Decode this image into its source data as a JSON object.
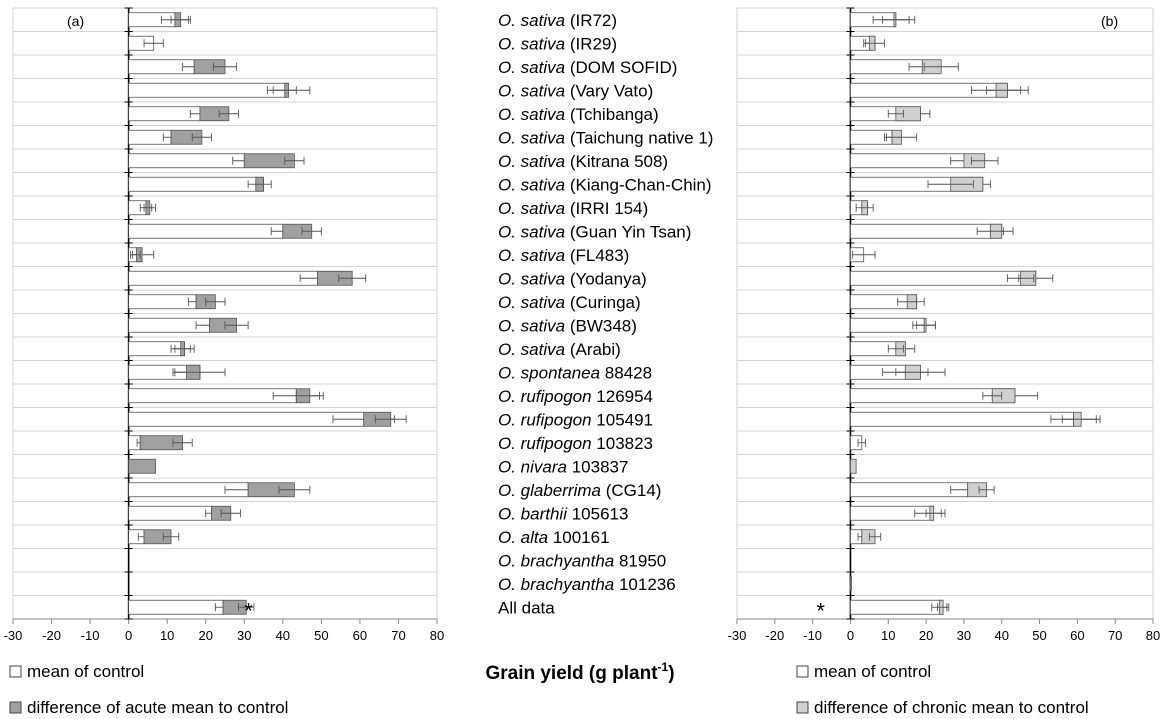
{
  "chart_data": {
    "type": "bar",
    "xlabel": "Grain yield (g plant",
    "xlabel_sup": "-1",
    "xlabel_close": ")",
    "xlim": [
      -30,
      80
    ],
    "xticks": [
      "-30",
      "-20",
      "-10",
      "0",
      "10",
      "20",
      "30",
      "40",
      "50",
      "60",
      "70",
      "80"
    ],
    "categories": [
      {
        "italic": "O. sativa",
        "rest": " (IR72)"
      },
      {
        "italic": "O. sativa",
        "rest": " (IR29)"
      },
      {
        "italic": "O. sativa",
        "rest": " (DOM SOFID)"
      },
      {
        "italic": "O. sativa",
        "rest": " (Vary Vato)"
      },
      {
        "italic": "O. sativa",
        "rest": " (Tchibanga)"
      },
      {
        "italic": "O. sativa",
        "rest": " (Taichung native 1)"
      },
      {
        "italic": "O. sativa",
        "rest": " (Kitrana 508)"
      },
      {
        "italic": "O. sativa",
        "rest": " (Kiang-Chan-Chin)"
      },
      {
        "italic": "O. sativa",
        "rest": " (IRRI 154)"
      },
      {
        "italic": "O. sativa",
        "rest": " (Guan Yin Tsan)"
      },
      {
        "italic": "O. sativa",
        "rest": " (FL483)"
      },
      {
        "italic": "O. sativa",
        "rest": " (Yodanya)"
      },
      {
        "italic": "O. sativa",
        "rest": " (Curinga)"
      },
      {
        "italic": "O. sativa",
        "rest": " (BW348)"
      },
      {
        "italic": "O. sativa",
        "rest": " (Arabi)"
      },
      {
        "italic": "O. spontanea",
        "rest": " 88428"
      },
      {
        "italic": "O. rufipogon",
        "rest": " 126954"
      },
      {
        "italic": "O. rufipogon",
        "rest": " 105491"
      },
      {
        "italic": "O. rufipogon",
        "rest": " 103823"
      },
      {
        "italic": "O. nivara",
        "rest": " 103837"
      },
      {
        "italic": "O. glaberrima",
        "rest": " (CG14)"
      },
      {
        "italic": "O. barthii",
        "rest": " 105613"
      },
      {
        "italic": "O. alta",
        "rest": " 100161"
      },
      {
        "italic": "O. brachyantha",
        "rest": " 81950"
      },
      {
        "italic": "O. brachyantha",
        "rest": " 101236"
      },
      {
        "italic": "",
        "rest": "All data"
      }
    ],
    "panels": [
      {
        "label": "(a)",
        "colors": {
          "control": "#ffffff",
          "difference": "#a0a0a0"
        },
        "legend": [
          "mean of control",
          "difference of acute mean to control"
        ],
        "significance": {
          "index": 25,
          "marker": "*"
        },
        "series": [
          {
            "name": "mean of control",
            "values": [
              12,
              6.5,
              17,
              41.5,
              18.5,
              11,
              30,
              35,
              4.5,
              40,
              3.5,
              49,
              17.5,
              21,
              14.5,
              18.5,
              43.5,
              61,
              3,
              0,
              31,
              21.5,
              4,
              0,
              0,
              24.5
            ],
            "errors": [
              3.5,
              2.5,
              3,
              5.5,
              2.5,
              2,
              3,
              2,
              1.5,
              3,
              3,
              4.5,
              2,
              3.5,
              2.5,
              6.5,
              6,
              8,
              0.8,
              0,
              6,
              1.5,
              1.5,
              0,
              0,
              2
            ]
          },
          {
            "name": "difference of acute mean to control",
            "values": [
              1.5,
              0,
              8,
              -1,
              7.5,
              8,
              13,
              -2,
              1,
              7.5,
              -1.5,
              9,
              5,
              7,
              -1,
              -3.5,
              3.5,
              7,
              11,
              7,
              12,
              5,
              7,
              0,
              0,
              6
            ],
            "errors": [
              2.5,
              1.5,
              3,
              3,
              2.5,
              2.5,
              2.5,
              2,
              1.5,
              2.5,
              1,
              3.5,
              2.5,
              3,
              2.5,
              3.5,
              3.5,
              4,
              2.5,
              0,
              4,
              2.5,
              2,
              0,
              0,
              2
            ]
          }
        ]
      },
      {
        "label": "(b)",
        "colors": {
          "control": "#ffffff",
          "difference": "#d0d0d0"
        },
        "legend": [
          "mean of control",
          "difference of chronic mean to control"
        ],
        "significance": {
          "index": 25,
          "marker": "*"
        },
        "series": [
          {
            "name": "mean of control",
            "values": [
              12,
              6.5,
              19,
              41.5,
              18.5,
              11,
              30,
              35,
              4.5,
              40,
              3.5,
              49,
              17.5,
              19.5,
              14.5,
              18.5,
              43.5,
              59,
              3,
              0,
              31,
              22,
              3,
              0,
              0,
              24.5
            ],
            "errors": [
              3.5,
              2.5,
              3.5,
              5.5,
              2.5,
              2,
              3.5,
              2,
              1.5,
              3,
              3,
              4.5,
              2,
              3,
              2.5,
              6.5,
              6,
              6,
              1,
              0,
              4.5,
              2,
              1,
              0,
              0,
              1.5
            ]
          },
          {
            "name": "difference of chronic mean to control",
            "values": [
              -0.5,
              -1.5,
              5,
              -3,
              -6.5,
              2.5,
              5.5,
              -8.5,
              -1.5,
              -3,
              0,
              -4,
              -2.5,
              0.5,
              -2.5,
              -4,
              -6,
              2,
              0,
              1.5,
              5,
              -1,
              3.5,
              0,
              0.3,
              -1
            ],
            "errors": [
              5.5,
              1.5,
              4.5,
              6.5,
              2,
              4,
              3.5,
              6,
              1.5,
              3.5,
              0,
              3.5,
              2.5,
              2.5,
              2,
              6,
              2.5,
              5,
              0,
              0,
              2,
              4,
              1.5,
              0,
              0,
              2
            ]
          }
        ]
      }
    ]
  }
}
